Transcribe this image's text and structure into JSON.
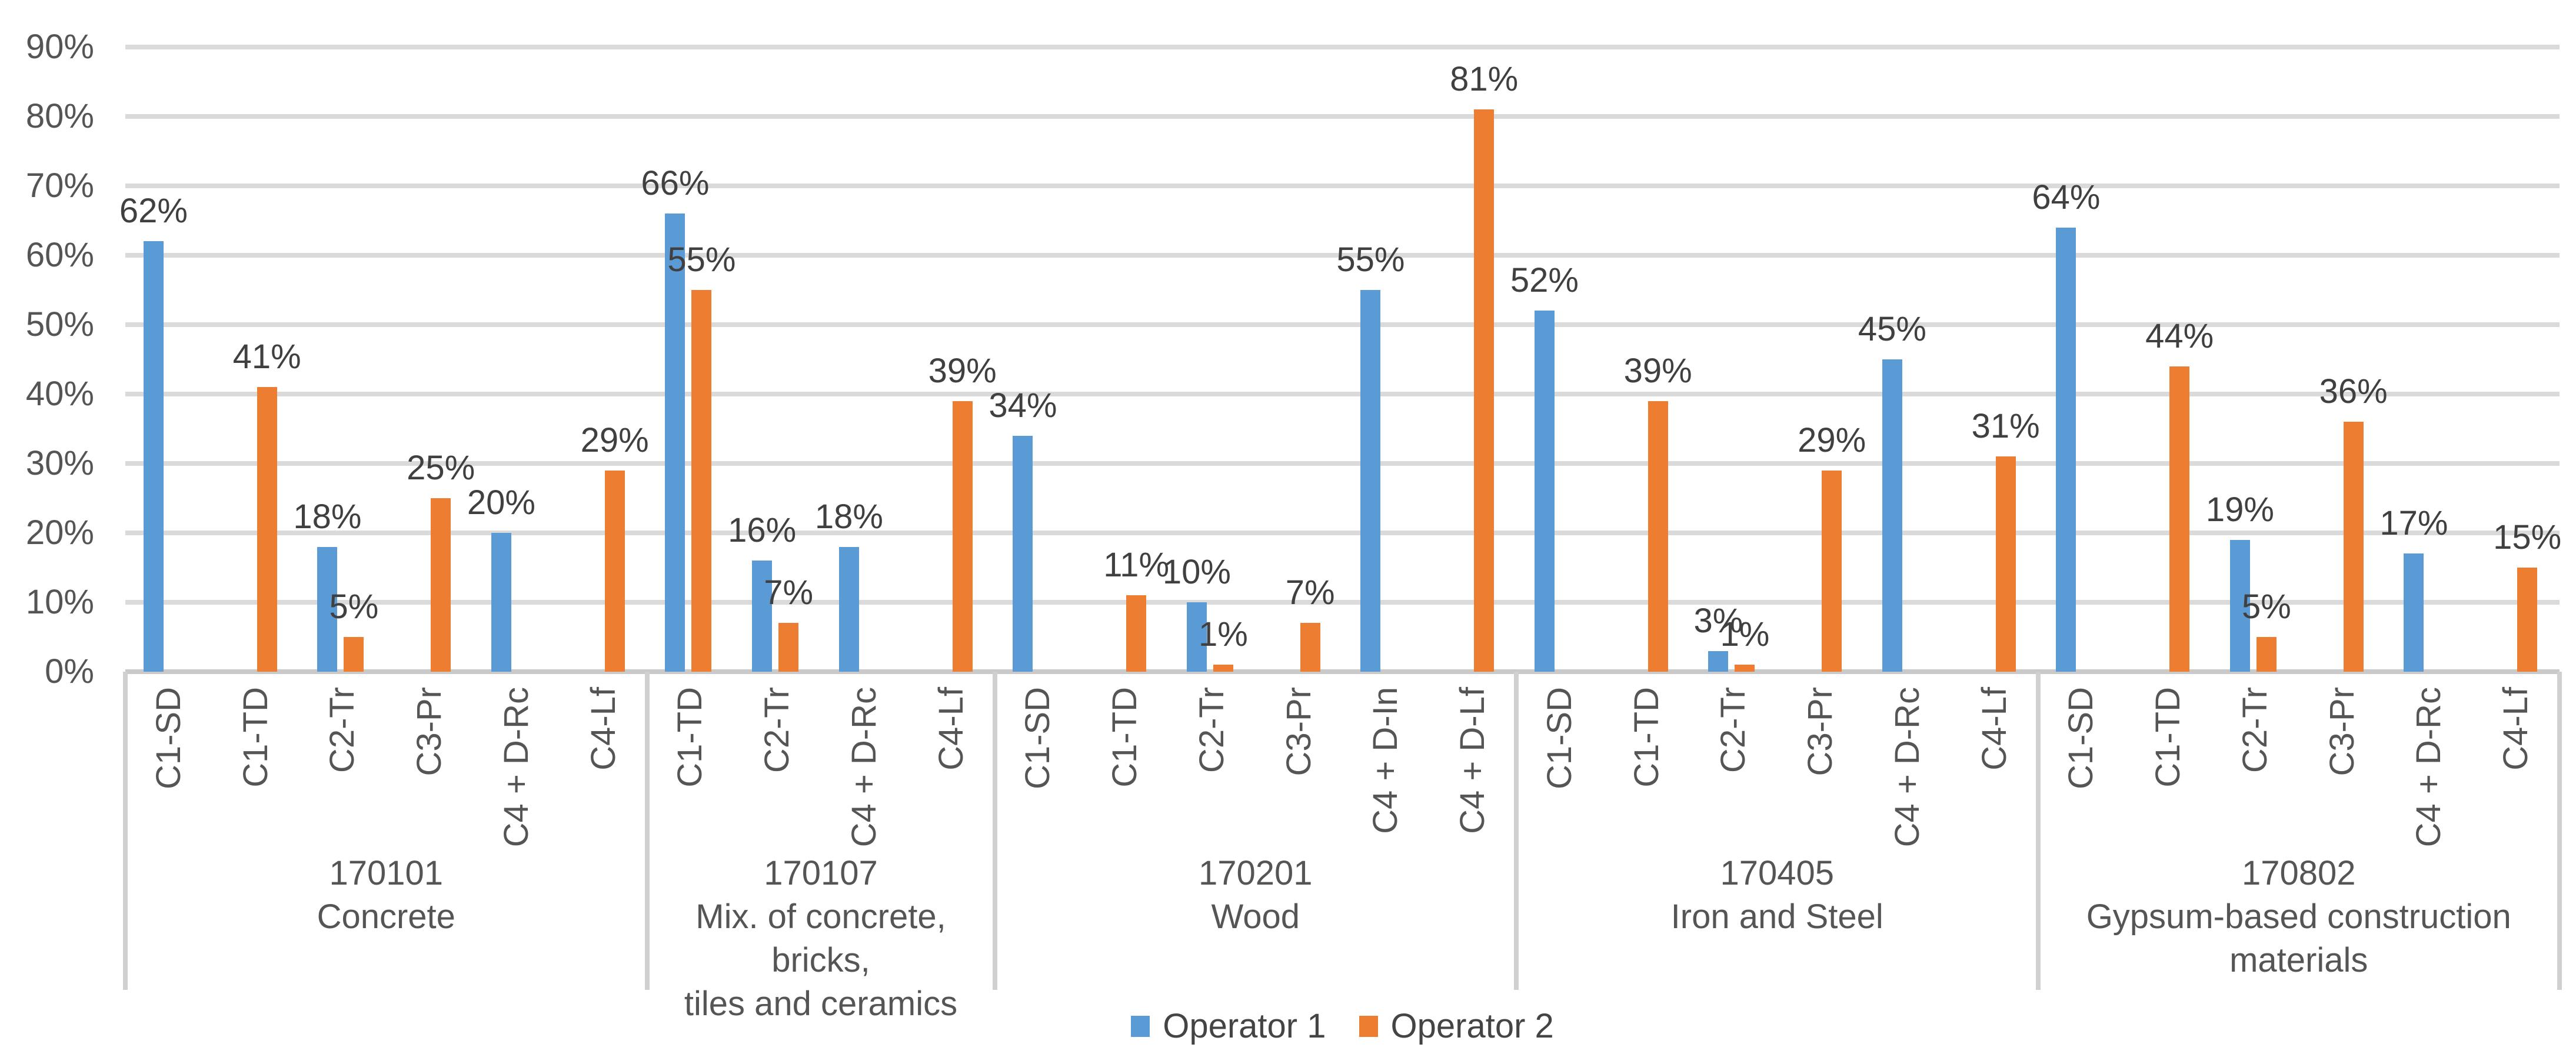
{
  "legend": {
    "items": [
      {
        "label": "Operator 1",
        "color": "#5B9BD5"
      },
      {
        "label": "Operator 2",
        "color": "#ED7D31"
      }
    ]
  },
  "chart_data": {
    "type": "bar",
    "title": "",
    "xlabel": "",
    "ylabel": "",
    "grid": true,
    "legend_position": "bottom",
    "data_label_format": "{value}%",
    "y_axis": {
      "min": 0,
      "max": 90,
      "step": 10,
      "ticks": [
        "0%",
        "10%",
        "20%",
        "30%",
        "40%",
        "50%",
        "60%",
        "70%",
        "80%",
        "90%"
      ]
    },
    "series": [
      {
        "name": "Operator 1",
        "color": "#5B9BD5"
      },
      {
        "name": "Operator 2",
        "color": "#ED7D31"
      }
    ],
    "groups": [
      {
        "code": "170101",
        "name_lines": [
          "Concrete"
        ],
        "categories": [
          {
            "label": "C1-SD",
            "operator1": 62,
            "operator2": null
          },
          {
            "label": "C1-TD",
            "operator1": null,
            "operator2": 41
          },
          {
            "label": "C2-Tr",
            "operator1": 18,
            "operator2": 5
          },
          {
            "label": "C3-Pr",
            "operator1": null,
            "operator2": 25
          },
          {
            "label": "C4 + D-Rc",
            "operator1": 20,
            "operator2": null
          },
          {
            "label": "C4-Lf",
            "operator1": null,
            "operator2": 29
          }
        ]
      },
      {
        "code": "170107",
        "name_lines": [
          "Mix. of concrete, bricks,",
          "tiles and ceramics"
        ],
        "categories": [
          {
            "label": "C1-TD",
            "operator1": 66,
            "operator2": 55
          },
          {
            "label": "C2-Tr",
            "operator1": 16,
            "operator2": 7
          },
          {
            "label": "C4 + D-Rc",
            "operator1": 18,
            "operator2": null
          },
          {
            "label": "C4-Lf",
            "operator1": null,
            "operator2": 39
          }
        ]
      },
      {
        "code": "170201",
        "name_lines": [
          "Wood"
        ],
        "categories": [
          {
            "label": "C1-SD",
            "operator1": 34,
            "operator2": null
          },
          {
            "label": "C1-TD",
            "operator1": null,
            "operator2": 11
          },
          {
            "label": "C2-Tr",
            "operator1": 10,
            "operator2": 1
          },
          {
            "label": "C3-Pr",
            "operator1": null,
            "operator2": 7
          },
          {
            "label": "C4 + D-In",
            "operator1": 55,
            "operator2": null
          },
          {
            "label": "C4 + D-Lf",
            "operator1": null,
            "operator2": 81
          }
        ]
      },
      {
        "code": "170405",
        "name_lines": [
          "Iron and Steel"
        ],
        "categories": [
          {
            "label": "C1-SD",
            "operator1": 52,
            "operator2": null
          },
          {
            "label": "C1-TD",
            "operator1": null,
            "operator2": 39
          },
          {
            "label": "C2-Tr",
            "operator1": 3,
            "operator2": 1
          },
          {
            "label": "C3-Pr",
            "operator1": null,
            "operator2": 29
          },
          {
            "label": "C4 + D-Rc",
            "operator1": 45,
            "operator2": null
          },
          {
            "label": "C4-Lf",
            "operator1": null,
            "operator2": 31
          }
        ]
      },
      {
        "code": "170802",
        "name_lines": [
          "Gypsum-based construction",
          "materials"
        ],
        "categories": [
          {
            "label": "C1-SD",
            "operator1": 64,
            "operator2": null
          },
          {
            "label": "C1-TD",
            "operator1": null,
            "operator2": 44
          },
          {
            "label": "C2-Tr",
            "operator1": 19,
            "operator2": 5
          },
          {
            "label": "C3-Pr",
            "operator1": null,
            "operator2": 36
          },
          {
            "label": "C4 + D-Rc",
            "operator1": 17,
            "operator2": null
          },
          {
            "label": "C4-Lf",
            "operator1": null,
            "operator2": 15
          }
        ]
      }
    ]
  }
}
